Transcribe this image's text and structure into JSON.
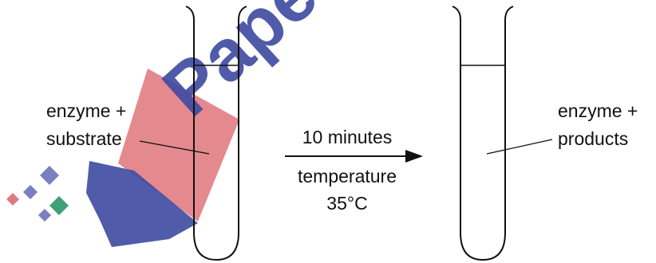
{
  "left_tube": {
    "label_line1": "enzyme +",
    "label_line2": "substrate"
  },
  "reaction": {
    "time_label": "10 minutes",
    "temperature_label": "temperature",
    "temperature_value": "35°C"
  },
  "right_tube": {
    "label_line1": "enzyme +",
    "label_line2": "products"
  },
  "watermark": {
    "text": "Pape",
    "colors": {
      "red": "#e07a80",
      "blue": "#3d4aa0",
      "accent_green": "#3fa07a",
      "accent_purple": "#7b7fc0"
    }
  },
  "colors": {
    "ink": "#111111"
  }
}
